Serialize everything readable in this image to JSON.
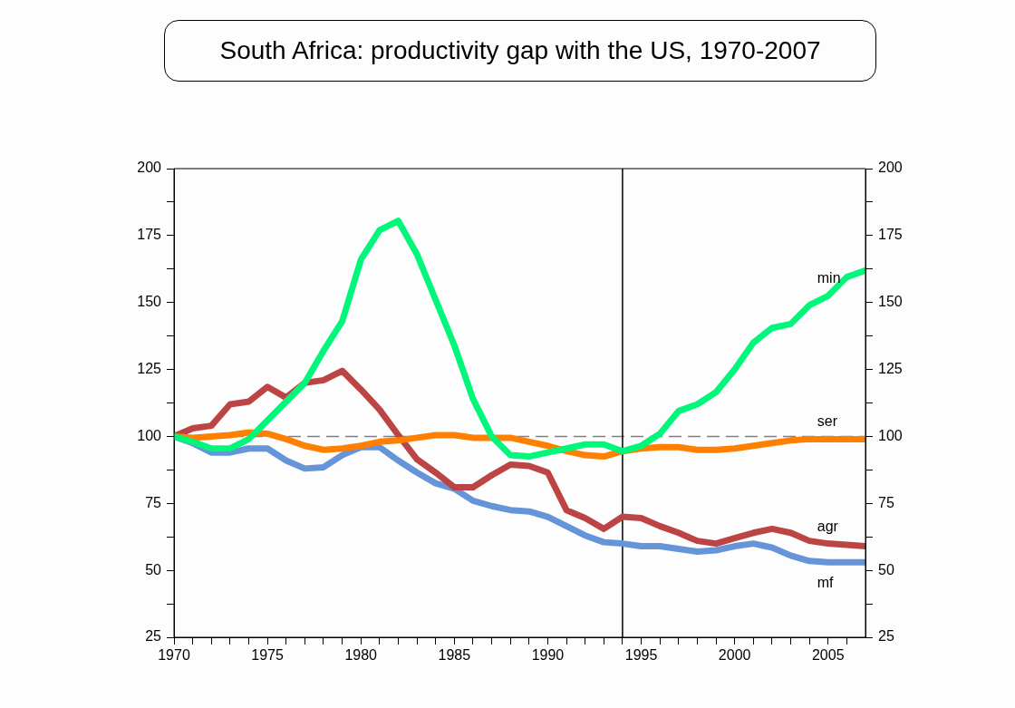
{
  "chart_data": {
    "type": "line",
    "title": "South Africa: productivity gap with the US, 1970-2007",
    "x": [
      1970,
      1971,
      1972,
      1973,
      1974,
      1975,
      1976,
      1977,
      1978,
      1979,
      1980,
      1981,
      1982,
      1983,
      1984,
      1985,
      1986,
      1987,
      1988,
      1989,
      1990,
      1991,
      1992,
      1993,
      1994,
      1995,
      1996,
      1997,
      1998,
      1999,
      2000,
      2001,
      2002,
      2003,
      2004,
      2005,
      2006,
      2007
    ],
    "series": [
      {
        "name": "min",
        "color": "#00f77a",
        "values": [
          100,
          98,
          95.5,
          95.5,
          99,
          106,
          113,
          120,
          132,
          143,
          166,
          177,
          180.5,
          168,
          151,
          134,
          114,
          100,
          93,
          92.5,
          94,
          95.5,
          97,
          97,
          94.5,
          96.5,
          101,
          109.5,
          112,
          116.5,
          125,
          135,
          140.5,
          142,
          149,
          152.5,
          159.5,
          162
        ]
      },
      {
        "name": "ser",
        "color": "#ff8000",
        "values": [
          100,
          99.5,
          100,
          100.5,
          101.5,
          101,
          99,
          96.5,
          95,
          95.5,
          96.5,
          98,
          98.5,
          99.5,
          100.5,
          100.5,
          99.5,
          99.5,
          99.5,
          98,
          96.5,
          94.5,
          93,
          92.5,
          94.5,
          95.5,
          96,
          96,
          95,
          95,
          95.5,
          96.5,
          97.5,
          98.5,
          99,
          99,
          99,
          99
        ]
      },
      {
        "name": "agr",
        "color": "#bc4444",
        "values": [
          100,
          103,
          104,
          112,
          113,
          118.5,
          114.5,
          120,
          121,
          124.5,
          117.5,
          110,
          100.5,
          91.5,
          86.5,
          81,
          81,
          85.5,
          89.5,
          89,
          86.5,
          72.5,
          69.5,
          65.5,
          70,
          69.5,
          66.5,
          64,
          61,
          60,
          62,
          64,
          65.5,
          64,
          61,
          60,
          59.5,
          59
        ]
      },
      {
        "name": "mf",
        "color": "#6694d8",
        "values": [
          100,
          97.5,
          94,
          94,
          95.5,
          95.5,
          91,
          88,
          88.5,
          93,
          96,
          96,
          91,
          86.5,
          82.5,
          80.5,
          76,
          74,
          72.5,
          72,
          70,
          66.5,
          63,
          60.5,
          60,
          59,
          59,
          58,
          57,
          57.5,
          59,
          60,
          58.5,
          55.5,
          53.5,
          53,
          53,
          53
        ]
      }
    ],
    "xlim": [
      1970,
      2007
    ],
    "xticks": [
      1970,
      {
        "value": 1971,
        "label": null
      },
      {
        "value": 1972,
        "label": null
      },
      {
        "value": 1973,
        "label": null
      },
      {
        "value": 1974,
        "label": null
      },
      1975,
      {
        "value": 1976,
        "label": null
      },
      {
        "value": 1977,
        "label": null
      },
      {
        "value": 1978,
        "label": null
      },
      {
        "value": 1979,
        "label": null
      },
      1980,
      {
        "value": 1981,
        "label": null
      },
      {
        "value": 1982,
        "label": null
      },
      {
        "value": 1983,
        "label": null
      },
      {
        "value": 1984,
        "label": null
      },
      1985,
      {
        "value": 1986,
        "label": null
      },
      {
        "value": 1987,
        "label": null
      },
      {
        "value": 1988,
        "label": null
      },
      {
        "value": 1989,
        "label": null
      },
      1990,
      {
        "value": 1991,
        "label": null
      },
      {
        "value": 1992,
        "label": null
      },
      {
        "value": 1993,
        "label": null
      },
      {
        "value": 1994,
        "label": null
      },
      1995,
      {
        "value": 1996,
        "label": null
      },
      {
        "value": 1997,
        "label": null
      },
      {
        "value": 1998,
        "label": null
      },
      {
        "value": 1999,
        "label": null
      },
      2000,
      {
        "value": 2001,
        "label": null
      },
      {
        "value": 2002,
        "label": null
      },
      {
        "value": 2003,
        "label": null
      },
      {
        "value": 2004,
        "label": null
      },
      2005,
      {
        "value": 2006,
        "label": null
      }
    ],
    "ylim": [
      25,
      200
    ],
    "yticks": [
      25,
      {
        "value": 37.5,
        "label": null
      },
      50,
      {
        "value": 62.5,
        "label": null
      },
      75,
      {
        "value": 87.5,
        "label": null
      },
      100,
      {
        "value": 112.5,
        "label": null
      },
      125,
      {
        "value": 137.5,
        "label": null
      },
      150,
      {
        "value": 162.5,
        "label": null
      },
      175,
      {
        "value": 187.5,
        "label": null
      },
      200
    ],
    "y2lim": [
      25,
      200
    ],
    "y2ticks": [
      25,
      {
        "value": 37.5,
        "label": null
      },
      50,
      {
        "value": 62.5,
        "label": null
      },
      75,
      {
        "value": 87.5,
        "label": null
      },
      100,
      {
        "value": 112.5,
        "label": null
      },
      125,
      {
        "value": 137.5,
        "label": null
      },
      150,
      {
        "value": 162.5,
        "label": null
      },
      175,
      {
        "value": 187.5,
        "label": null
      },
      200
    ],
    "ref_lines": [
      {
        "axis": "y",
        "value": 100,
        "color": "#808080",
        "line_style": "dashed"
      },
      {
        "axis": "x",
        "value": 1994,
        "color": "#000000",
        "line_style": "solid"
      }
    ],
    "grid": false,
    "legend": false,
    "marker": "none",
    "line_style": "solid"
  }
}
